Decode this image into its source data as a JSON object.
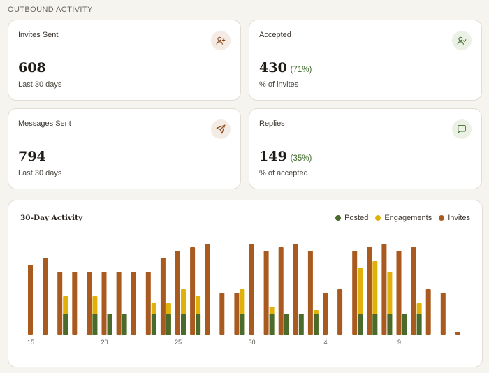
{
  "section": {
    "title": "OUTBOUND ACTIVITY"
  },
  "cards": {
    "invites": {
      "label": "Invites Sent",
      "value": "608",
      "pct": "",
      "sub": "Last 30 days",
      "icon": "user-plus-icon"
    },
    "accepted": {
      "label": "Accepted",
      "value": "430",
      "pct": "(71%)",
      "sub": "% of invites",
      "icon": "user-check-icon"
    },
    "messages": {
      "label": "Messages Sent",
      "value": "794",
      "pct": "",
      "sub": "Last 30 days",
      "icon": "send-icon"
    },
    "replies": {
      "label": "Replies",
      "value": "149",
      "pct": "(35%)",
      "sub": "% of accepted",
      "icon": "message-square-icon"
    }
  },
  "colors": {
    "posted": "#4a6b2c",
    "engagements": "#e0b10b",
    "invites": "#a85a1f",
    "accent_green": "#3e6b2a",
    "icon_brown": "#8a4a1e"
  },
  "chart": {
    "title": "30-Day Activity",
    "legend": [
      "Posted",
      "Engagements",
      "Invites"
    ]
  },
  "chart_data": {
    "type": "bar",
    "x_ticks": [
      "15",
      "20",
      "25",
      "30",
      "4",
      "9"
    ],
    "ylim": [
      0,
      130
    ],
    "days": [
      {
        "x": 15,
        "posted": 0,
        "engagements": 0,
        "invites": 100
      },
      {
        "x": 16,
        "posted": 0,
        "engagements": 0,
        "invites": 110
      },
      {
        "x": 17,
        "posted": 30,
        "engagements": 55,
        "invites": 90
      },
      {
        "x": 18,
        "posted": 0,
        "engagements": 0,
        "invites": 90
      },
      {
        "x": 19,
        "posted": 30,
        "engagements": 55,
        "invites": 90
      },
      {
        "x": 20,
        "posted": 30,
        "engagements": 0,
        "invites": 90
      },
      {
        "x": 21,
        "posted": 30,
        "engagements": 0,
        "invites": 90
      },
      {
        "x": 22,
        "posted": 0,
        "engagements": 0,
        "invites": 90
      },
      {
        "x": 23,
        "posted": 30,
        "engagements": 45,
        "invites": 90
      },
      {
        "x": 24,
        "posted": 30,
        "engagements": 45,
        "invites": 110
      },
      {
        "x": 25,
        "posted": 30,
        "engagements": 65,
        "invites": 120
      },
      {
        "x": 26,
        "posted": 30,
        "engagements": 55,
        "invites": 125
      },
      {
        "x": 27,
        "posted": 0,
        "engagements": 0,
        "invites": 130
      },
      {
        "x": 28,
        "posted": 0,
        "engagements": 0,
        "invites": 60
      },
      {
        "x": 29,
        "posted": 30,
        "engagements": 65,
        "invites": 60
      },
      {
        "x": 30,
        "posted": 0,
        "engagements": 0,
        "invites": 130
      },
      {
        "x": 31,
        "posted": 30,
        "engagements": 40,
        "invites": 120
      },
      {
        "x": 1,
        "posted": 30,
        "engagements": 0,
        "invites": 125
      },
      {
        "x": 2,
        "posted": 30,
        "engagements": 0,
        "invites": 130
      },
      {
        "x": 3,
        "posted": 30,
        "engagements": 35,
        "invites": 120
      },
      {
        "x": 4,
        "posted": 0,
        "engagements": 0,
        "invites": 60
      },
      {
        "x": 5,
        "posted": 0,
        "engagements": 0,
        "invites": 65
      },
      {
        "x": 6,
        "posted": 30,
        "engagements": 95,
        "invites": 120
      },
      {
        "x": 7,
        "posted": 30,
        "engagements": 105,
        "invites": 125
      },
      {
        "x": 8,
        "posted": 30,
        "engagements": 90,
        "invites": 130
      },
      {
        "x": 9,
        "posted": 30,
        "engagements": 0,
        "invites": 120
      },
      {
        "x": 10,
        "posted": 30,
        "engagements": 45,
        "invites": 125
      },
      {
        "x": 11,
        "posted": 0,
        "engagements": 0,
        "invites": 65
      },
      {
        "x": 12,
        "posted": 0,
        "engagements": 0,
        "invites": 60
      },
      {
        "x": 13,
        "posted": 0,
        "engagements": 0,
        "invites": 4
      }
    ]
  }
}
